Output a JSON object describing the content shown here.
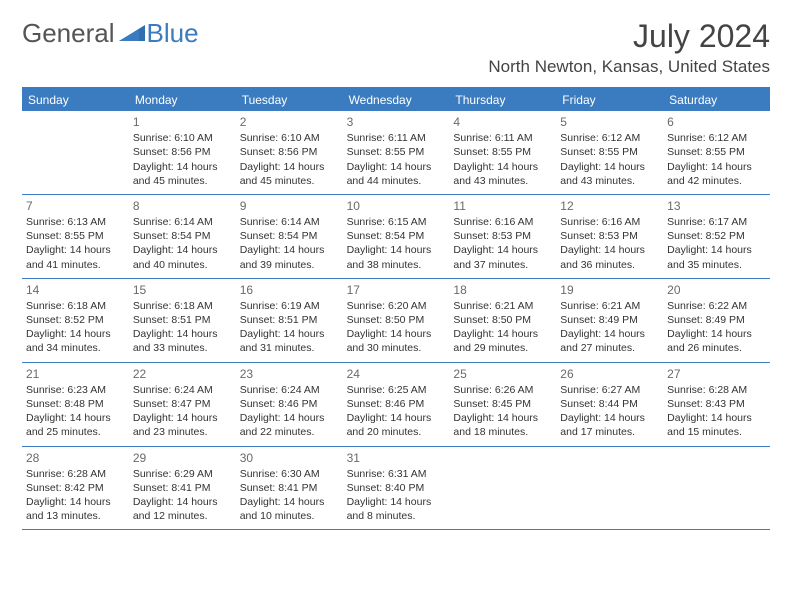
{
  "logo": {
    "general": "General",
    "blue": "Blue"
  },
  "title": "July 2024",
  "location": "North Newton, Kansas, United States",
  "colors": {
    "header_bg": "#3b7bbf",
    "header_text": "#ffffff",
    "border": "#3b7bbf",
    "daynum": "#6a6a6a",
    "body_text": "#333333",
    "title_text": "#444444"
  },
  "day_labels": [
    "Sunday",
    "Monday",
    "Tuesday",
    "Wednesday",
    "Thursday",
    "Friday",
    "Saturday"
  ],
  "weeks": [
    [
      {
        "num": "",
        "sunrise": "",
        "sunset": "",
        "daylight": ""
      },
      {
        "num": "1",
        "sunrise": "Sunrise: 6:10 AM",
        "sunset": "Sunset: 8:56 PM",
        "daylight": "Daylight: 14 hours and 45 minutes."
      },
      {
        "num": "2",
        "sunrise": "Sunrise: 6:10 AM",
        "sunset": "Sunset: 8:56 PM",
        "daylight": "Daylight: 14 hours and 45 minutes."
      },
      {
        "num": "3",
        "sunrise": "Sunrise: 6:11 AM",
        "sunset": "Sunset: 8:55 PM",
        "daylight": "Daylight: 14 hours and 44 minutes."
      },
      {
        "num": "4",
        "sunrise": "Sunrise: 6:11 AM",
        "sunset": "Sunset: 8:55 PM",
        "daylight": "Daylight: 14 hours and 43 minutes."
      },
      {
        "num": "5",
        "sunrise": "Sunrise: 6:12 AM",
        "sunset": "Sunset: 8:55 PM",
        "daylight": "Daylight: 14 hours and 43 minutes."
      },
      {
        "num": "6",
        "sunrise": "Sunrise: 6:12 AM",
        "sunset": "Sunset: 8:55 PM",
        "daylight": "Daylight: 14 hours and 42 minutes."
      }
    ],
    [
      {
        "num": "7",
        "sunrise": "Sunrise: 6:13 AM",
        "sunset": "Sunset: 8:55 PM",
        "daylight": "Daylight: 14 hours and 41 minutes."
      },
      {
        "num": "8",
        "sunrise": "Sunrise: 6:14 AM",
        "sunset": "Sunset: 8:54 PM",
        "daylight": "Daylight: 14 hours and 40 minutes."
      },
      {
        "num": "9",
        "sunrise": "Sunrise: 6:14 AM",
        "sunset": "Sunset: 8:54 PM",
        "daylight": "Daylight: 14 hours and 39 minutes."
      },
      {
        "num": "10",
        "sunrise": "Sunrise: 6:15 AM",
        "sunset": "Sunset: 8:54 PM",
        "daylight": "Daylight: 14 hours and 38 minutes."
      },
      {
        "num": "11",
        "sunrise": "Sunrise: 6:16 AM",
        "sunset": "Sunset: 8:53 PM",
        "daylight": "Daylight: 14 hours and 37 minutes."
      },
      {
        "num": "12",
        "sunrise": "Sunrise: 6:16 AM",
        "sunset": "Sunset: 8:53 PM",
        "daylight": "Daylight: 14 hours and 36 minutes."
      },
      {
        "num": "13",
        "sunrise": "Sunrise: 6:17 AM",
        "sunset": "Sunset: 8:52 PM",
        "daylight": "Daylight: 14 hours and 35 minutes."
      }
    ],
    [
      {
        "num": "14",
        "sunrise": "Sunrise: 6:18 AM",
        "sunset": "Sunset: 8:52 PM",
        "daylight": "Daylight: 14 hours and 34 minutes."
      },
      {
        "num": "15",
        "sunrise": "Sunrise: 6:18 AM",
        "sunset": "Sunset: 8:51 PM",
        "daylight": "Daylight: 14 hours and 33 minutes."
      },
      {
        "num": "16",
        "sunrise": "Sunrise: 6:19 AM",
        "sunset": "Sunset: 8:51 PM",
        "daylight": "Daylight: 14 hours and 31 minutes."
      },
      {
        "num": "17",
        "sunrise": "Sunrise: 6:20 AM",
        "sunset": "Sunset: 8:50 PM",
        "daylight": "Daylight: 14 hours and 30 minutes."
      },
      {
        "num": "18",
        "sunrise": "Sunrise: 6:21 AM",
        "sunset": "Sunset: 8:50 PM",
        "daylight": "Daylight: 14 hours and 29 minutes."
      },
      {
        "num": "19",
        "sunrise": "Sunrise: 6:21 AM",
        "sunset": "Sunset: 8:49 PM",
        "daylight": "Daylight: 14 hours and 27 minutes."
      },
      {
        "num": "20",
        "sunrise": "Sunrise: 6:22 AM",
        "sunset": "Sunset: 8:49 PM",
        "daylight": "Daylight: 14 hours and 26 minutes."
      }
    ],
    [
      {
        "num": "21",
        "sunrise": "Sunrise: 6:23 AM",
        "sunset": "Sunset: 8:48 PM",
        "daylight": "Daylight: 14 hours and 25 minutes."
      },
      {
        "num": "22",
        "sunrise": "Sunrise: 6:24 AM",
        "sunset": "Sunset: 8:47 PM",
        "daylight": "Daylight: 14 hours and 23 minutes."
      },
      {
        "num": "23",
        "sunrise": "Sunrise: 6:24 AM",
        "sunset": "Sunset: 8:46 PM",
        "daylight": "Daylight: 14 hours and 22 minutes."
      },
      {
        "num": "24",
        "sunrise": "Sunrise: 6:25 AM",
        "sunset": "Sunset: 8:46 PM",
        "daylight": "Daylight: 14 hours and 20 minutes."
      },
      {
        "num": "25",
        "sunrise": "Sunrise: 6:26 AM",
        "sunset": "Sunset: 8:45 PM",
        "daylight": "Daylight: 14 hours and 18 minutes."
      },
      {
        "num": "26",
        "sunrise": "Sunrise: 6:27 AM",
        "sunset": "Sunset: 8:44 PM",
        "daylight": "Daylight: 14 hours and 17 minutes."
      },
      {
        "num": "27",
        "sunrise": "Sunrise: 6:28 AM",
        "sunset": "Sunset: 8:43 PM",
        "daylight": "Daylight: 14 hours and 15 minutes."
      }
    ],
    [
      {
        "num": "28",
        "sunrise": "Sunrise: 6:28 AM",
        "sunset": "Sunset: 8:42 PM",
        "daylight": "Daylight: 14 hours and 13 minutes."
      },
      {
        "num": "29",
        "sunrise": "Sunrise: 6:29 AM",
        "sunset": "Sunset: 8:41 PM",
        "daylight": "Daylight: 14 hours and 12 minutes."
      },
      {
        "num": "30",
        "sunrise": "Sunrise: 6:30 AM",
        "sunset": "Sunset: 8:41 PM",
        "daylight": "Daylight: 14 hours and 10 minutes."
      },
      {
        "num": "31",
        "sunrise": "Sunrise: 6:31 AM",
        "sunset": "Sunset: 8:40 PM",
        "daylight": "Daylight: 14 hours and 8 minutes."
      },
      {
        "num": "",
        "sunrise": "",
        "sunset": "",
        "daylight": ""
      },
      {
        "num": "",
        "sunrise": "",
        "sunset": "",
        "daylight": ""
      },
      {
        "num": "",
        "sunrise": "",
        "sunset": "",
        "daylight": ""
      }
    ]
  ]
}
